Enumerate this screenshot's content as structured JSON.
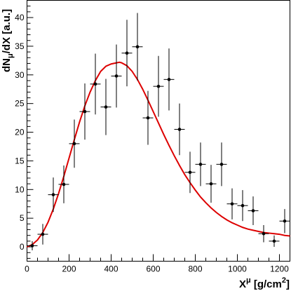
{
  "chart_data": {
    "type": "scatter",
    "xlabel": "X",
    "xlabel_sup": "μ",
    "xlabel_unit": " [g/cm",
    "xlabel_unit_sup": "2",
    "xlabel_end": "]",
    "ylabel": "dN",
    "ylabel_sub": "μ",
    "ylabel_rest": "/dX [a.u.]",
    "xlim": [
      0,
      1250
    ],
    "ylim": [
      -2.5,
      43
    ],
    "x_ticks": [
      0,
      200,
      400,
      600,
      800,
      1000,
      1200
    ],
    "x_tick_labels": [
      "0",
      "200",
      "400",
      "600",
      "800",
      "1000",
      "1200"
    ],
    "y_ticks": [
      0,
      5,
      10,
      15,
      20,
      25,
      30,
      35,
      40
    ],
    "y_tick_labels": [
      "0",
      "5",
      "10",
      "15",
      "20",
      "25",
      "30",
      "35",
      "40"
    ],
    "grid": false,
    "marker_color": "#000000",
    "fit_color": "#dd0000",
    "series": [
      {
        "x_halfwidth": 25,
        "points": [
          {
            "x": 25,
            "y": 0.2,
            "err": 0.8
          },
          {
            "x": 75,
            "y": 2.2,
            "err": 1.8
          },
          {
            "x": 125,
            "y": 9.1,
            "err": 3.0
          },
          {
            "x": 175,
            "y": 10.9,
            "err": 3.3
          },
          {
            "x": 225,
            "y": 18.0,
            "err": 4.2
          },
          {
            "x": 275,
            "y": 23.6,
            "err": 4.9
          },
          {
            "x": 325,
            "y": 28.4,
            "err": 5.3
          },
          {
            "x": 375,
            "y": 24.4,
            "err": 4.9
          },
          {
            "x": 425,
            "y": 29.8,
            "err": 5.5
          },
          {
            "x": 475,
            "y": 33.8,
            "err": 5.8
          },
          {
            "x": 525,
            "y": 34.9,
            "err": 5.9
          },
          {
            "x": 575,
            "y": 22.5,
            "err": 4.7
          },
          {
            "x": 625,
            "y": 28.0,
            "err": 5.3
          },
          {
            "x": 675,
            "y": 29.2,
            "err": 5.4
          },
          {
            "x": 725,
            "y": 20.5,
            "err": 4.5
          },
          {
            "x": 775,
            "y": 13.0,
            "err": 3.6
          },
          {
            "x": 825,
            "y": 14.4,
            "err": 3.8
          },
          {
            "x": 875,
            "y": 11.0,
            "err": 3.3
          },
          {
            "x": 925,
            "y": 14.4,
            "err": 3.8
          },
          {
            "x": 975,
            "y": 7.5,
            "err": 2.7
          },
          {
            "x": 1025,
            "y": 7.2,
            "err": 2.7
          },
          {
            "x": 1075,
            "y": 6.3,
            "err": 2.5
          },
          {
            "x": 1125,
            "y": 2.3,
            "err": 1.5
          },
          {
            "x": 1175,
            "y": 1.0,
            "err": 1.0
          },
          {
            "x": 1225,
            "y": 4.5,
            "err": 2.1
          }
        ]
      }
    ],
    "fit_curve": {
      "type": "line",
      "x": [
        0,
        25,
        50,
        75,
        100,
        125,
        150,
        175,
        200,
        225,
        250,
        275,
        300,
        325,
        350,
        375,
        400,
        425,
        440,
        450,
        475,
        500,
        525,
        550,
        575,
        600,
        625,
        650,
        675,
        700,
        725,
        750,
        775,
        800,
        825,
        850,
        875,
        900,
        925,
        950,
        975,
        1000,
        1025,
        1050,
        1075,
        1100,
        1125,
        1150,
        1175,
        1200,
        1225,
        1250
      ],
      "y": [
        0.0,
        0.4,
        1.2,
        2.5,
        4.3,
        6.6,
        9.3,
        12.3,
        15.5,
        18.7,
        21.8,
        24.6,
        27.0,
        29.0,
        30.6,
        31.5,
        31.9,
        32.1,
        32.2,
        32.1,
        31.6,
        30.6,
        29.2,
        27.5,
        25.6,
        23.6,
        21.6,
        19.6,
        17.7,
        15.9,
        14.2,
        12.6,
        11.2,
        9.9,
        8.7,
        7.7,
        6.8,
        6.0,
        5.3,
        4.7,
        4.2,
        3.8,
        3.4,
        3.1,
        2.9,
        2.7,
        2.5,
        2.4,
        2.3,
        2.2,
        2.0,
        1.9
      ]
    }
  }
}
